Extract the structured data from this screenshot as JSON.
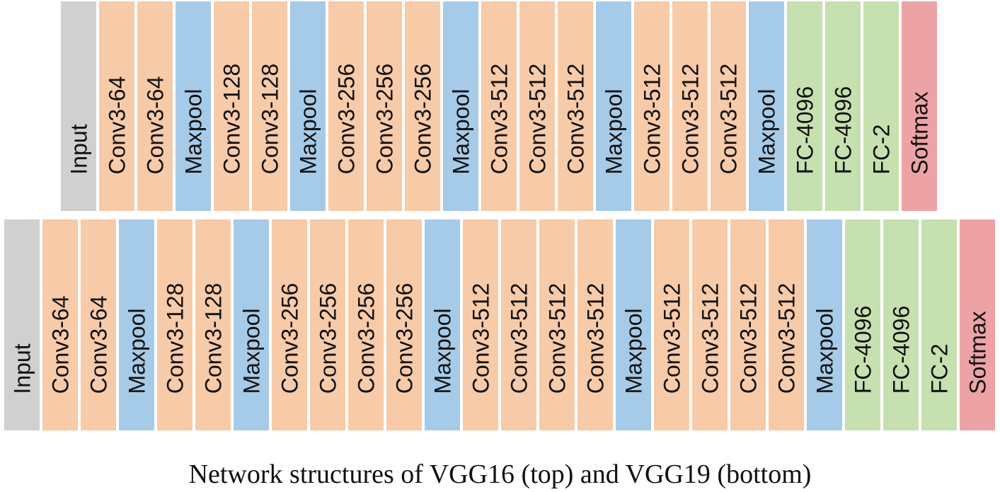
{
  "colors": {
    "input": "#d0d0d0",
    "conv": "#f7caa8",
    "maxpool": "#a6cbe8",
    "fc": "#c6e0b0",
    "softmax": "#eda3a6"
  },
  "vgg16": [
    {
      "label": "Input",
      "kind": "input"
    },
    {
      "label": "Conv3-64",
      "kind": "conv"
    },
    {
      "label": "Conv3-64",
      "kind": "conv"
    },
    {
      "label": "Maxpool",
      "kind": "maxpool"
    },
    {
      "label": "Conv3-128",
      "kind": "conv"
    },
    {
      "label": "Conv3-128",
      "kind": "conv"
    },
    {
      "label": "Maxpool",
      "kind": "maxpool"
    },
    {
      "label": "Conv3-256",
      "kind": "conv"
    },
    {
      "label": "Conv3-256",
      "kind": "conv"
    },
    {
      "label": "Conv3-256",
      "kind": "conv"
    },
    {
      "label": "Maxpool",
      "kind": "maxpool"
    },
    {
      "label": "Conv3-512",
      "kind": "conv"
    },
    {
      "label": "Conv3-512",
      "kind": "conv"
    },
    {
      "label": "Conv3-512",
      "kind": "conv"
    },
    {
      "label": "Maxpool",
      "kind": "maxpool"
    },
    {
      "label": "Conv3-512",
      "kind": "conv"
    },
    {
      "label": "Conv3-512",
      "kind": "conv"
    },
    {
      "label": "Conv3-512",
      "kind": "conv"
    },
    {
      "label": "Maxpool",
      "kind": "maxpool"
    },
    {
      "label": "FC-4096",
      "kind": "fc"
    },
    {
      "label": "FC-4096",
      "kind": "fc"
    },
    {
      "label": "FC-2",
      "kind": "fc"
    },
    {
      "label": "Softmax",
      "kind": "softmax"
    }
  ],
  "vgg19": [
    {
      "label": "Input",
      "kind": "input"
    },
    {
      "label": "Conv3-64",
      "kind": "conv"
    },
    {
      "label": "Conv3-64",
      "kind": "conv"
    },
    {
      "label": "Maxpool",
      "kind": "maxpool"
    },
    {
      "label": "Conv3-128",
      "kind": "conv"
    },
    {
      "label": "Conv3-128",
      "kind": "conv"
    },
    {
      "label": "Maxpool",
      "kind": "maxpool"
    },
    {
      "label": "Conv3-256",
      "kind": "conv"
    },
    {
      "label": "Conv3-256",
      "kind": "conv"
    },
    {
      "label": "Conv3-256",
      "kind": "conv"
    },
    {
      "label": "Conv3-256",
      "kind": "conv"
    },
    {
      "label": "Maxpool",
      "kind": "maxpool"
    },
    {
      "label": "Conv3-512",
      "kind": "conv"
    },
    {
      "label": "Conv3-512",
      "kind": "conv"
    },
    {
      "label": "Conv3-512",
      "kind": "conv"
    },
    {
      "label": "Conv3-512",
      "kind": "conv"
    },
    {
      "label": "Maxpool",
      "kind": "maxpool"
    },
    {
      "label": "Conv3-512",
      "kind": "conv"
    },
    {
      "label": "Conv3-512",
      "kind": "conv"
    },
    {
      "label": "Conv3-512",
      "kind": "conv"
    },
    {
      "label": "Conv3-512",
      "kind": "conv"
    },
    {
      "label": "Maxpool",
      "kind": "maxpool"
    },
    {
      "label": "FC-4096",
      "kind": "fc"
    },
    {
      "label": "FC-4096",
      "kind": "fc"
    },
    {
      "label": "FC-2",
      "kind": "fc"
    },
    {
      "label": "Softmax",
      "kind": "softmax"
    }
  ],
  "caption": "Network structures of VGG16 (top) and VGG19 (bottom)"
}
